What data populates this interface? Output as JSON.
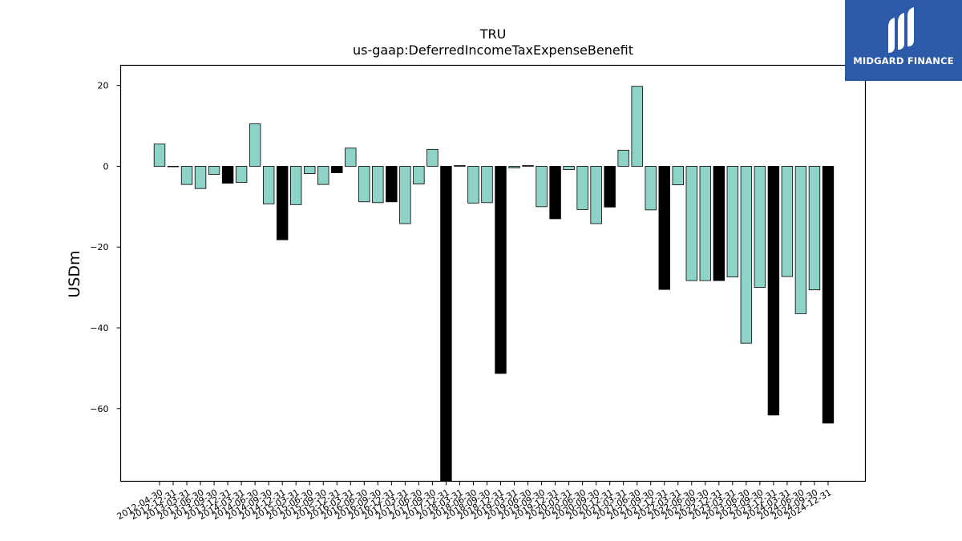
{
  "logo": {
    "text": "MIDGARD FINANCE"
  },
  "chart_data": {
    "type": "bar",
    "title": "TRU",
    "subtitle": "us-gaap:DeferredIncomeTaxExpenseBenefit",
    "xlabel": "",
    "ylabel": "USDm",
    "ylim": [
      -78,
      25
    ],
    "yticks": [
      20,
      0,
      -20,
      -40,
      -60
    ],
    "ytick_labels": [
      "20",
      "0",
      "−20",
      "−40",
      "−60"
    ],
    "grid": false,
    "colors": {
      "quarter": "#8dd3c7",
      "annual": "#000000",
      "edge": "#000000"
    },
    "categories": [
      "2012-04-30",
      "2012-12-31",
      "2013-03-31",
      "2013-06-30",
      "2013-09-30",
      "2013-12-31",
      "2014-03-31",
      "2014-06-30",
      "2014-09-30",
      "2014-12-31",
      "2015-03-31",
      "2015-06-30",
      "2015-09-30",
      "2015-12-31",
      "2016-03-31",
      "2016-06-30",
      "2016-09-30",
      "2016-12-31",
      "2017-03-31",
      "2017-06-30",
      "2017-09-30",
      "2017-12-31",
      "2018-03-31",
      "2018-06-30",
      "2018-09-30",
      "2018-12-31",
      "2019-03-31",
      "2019-06-30",
      "2019-09-30",
      "2019-12-31",
      "2020-03-31",
      "2020-06-30",
      "2020-09-30",
      "2020-12-31",
      "2021-03-31",
      "2021-06-30",
      "2021-09-30",
      "2021-12-31",
      "2022-03-31",
      "2022-06-30",
      "2022-09-30",
      "2022-12-31",
      "2023-03-31",
      "2023-06-30",
      "2023-09-30",
      "2023-12-31",
      "2024-03-31",
      "2024-06-30",
      "2024-09-30",
      "2024-12-31"
    ],
    "values": [
      5.5,
      0,
      -4.5,
      -5.5,
      -2,
      -4.2,
      -4,
      10.5,
      -9.3,
      -18.2,
      -9.5,
      -1.8,
      -4.5,
      -1.6,
      4.5,
      -8.8,
      -9,
      -8.8,
      -14.2,
      -4.4,
      4.2,
      -78,
      0.2,
      -9.1,
      -9,
      -51.3,
      -0.4,
      0.2,
      -10,
      -13,
      -0.8,
      -10.7,
      -14.2,
      -10.1,
      4,
      19.8,
      -10.8,
      -30.5,
      -4.6,
      -28.3,
      -28.3,
      -28.3,
      -27.4,
      -43.8,
      -30,
      -61.6,
      -27.3,
      -36.5,
      -30.6,
      -63.6
    ],
    "annual": [
      false,
      false,
      false,
      false,
      false,
      true,
      false,
      false,
      false,
      true,
      false,
      false,
      false,
      true,
      false,
      false,
      false,
      true,
      false,
      false,
      false,
      true,
      false,
      false,
      false,
      true,
      false,
      false,
      false,
      true,
      false,
      false,
      false,
      true,
      false,
      false,
      false,
      true,
      false,
      false,
      false,
      true,
      false,
      false,
      false,
      true,
      false,
      false,
      false,
      true
    ]
  }
}
